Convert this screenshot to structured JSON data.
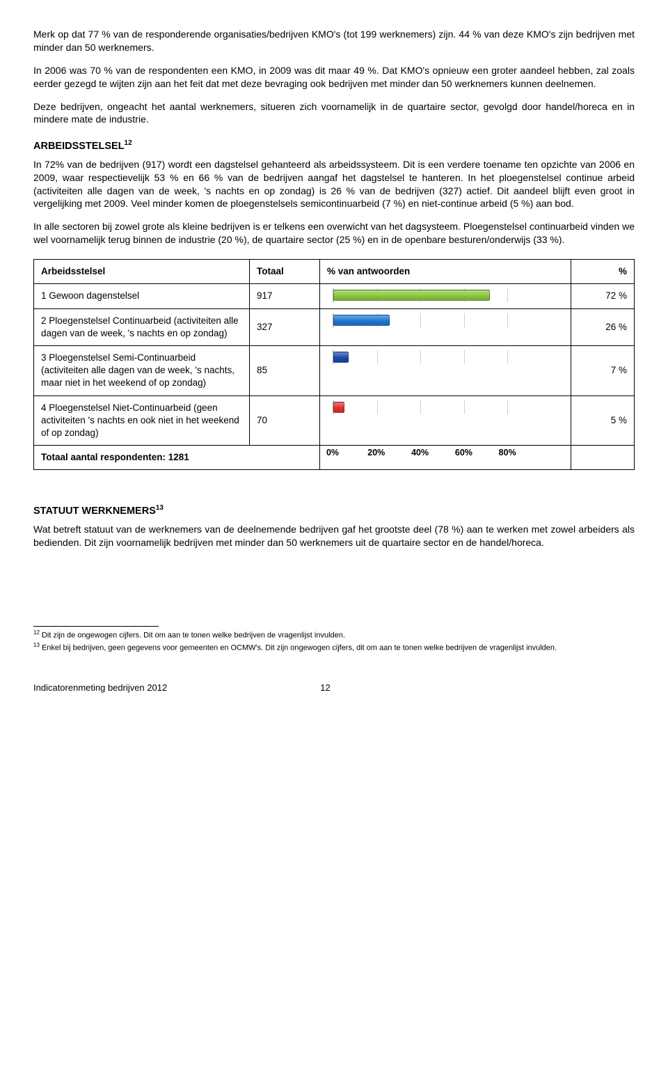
{
  "paragraphs": {
    "p1": "Merk op dat 77 % van de responderende organisaties/bedrijven KMO's (tot 199 werknemers) zijn. 44 % van deze KMO's zijn bedrijven met minder dan 50 werknemers.",
    "p2": "In 2006 was 70 % van de respondenten een KMO, in 2009 was dit maar 49 %. Dat KMO's opnieuw een groter aandeel hebben, zal zoals eerder gezegd te wijten zijn aan het feit dat met deze bevraging ook bedrijven met minder dan 50 werknemers kunnen deelnemen.",
    "p3": "Deze bedrijven, ongeacht het aantal werknemers, situeren zich voornamelijk in de quartaire sector, gevolgd door handel/horeca en in mindere mate de industrie.",
    "section1_title": "ARBEIDSSTELSEL",
    "section1_sup": "12",
    "p4": "In 72% van de bedrijven (917) wordt een dagstelsel gehanteerd als arbeidssysteem. Dit is een verdere toename ten opzichte van 2006 en 2009, waar respectievelijk 53 % en 66 % van de bedrijven aangaf het dagstelsel te hanteren. In het ploegenstelsel continue arbeid (activiteiten alle dagen van de week, 's nachts en op zondag) is 26 % van de bedrijven (327) actief. Dit aandeel blijft even groot in vergelijking met 2009. Veel minder komen de ploegenstelsels semicontinuarbeid (7 %) en niet-continue arbeid (5 %) aan bod.",
    "p5": "In alle sectoren bij zowel grote als kleine bedrijven is er telkens een overwicht van het dagsysteem. Ploegenstelsel continuarbeid vinden we wel voornamelijk terug binnen de industrie (20 %), de quartaire sector (25 %) en in de openbare besturen/onderwijs (33 %).",
    "section2_title": "STATUUT WERKNEMERS",
    "section2_sup": "13",
    "p6": "Wat betreft statuut van de werknemers van de deelnemende bedrijven gaf het grootste deel (78 %) aan te werken met zowel arbeiders als bedienden. Dit zijn voornamelijk bedrijven met minder dan 50 werknemers uit de quartaire sector en de handel/horeca."
  },
  "table": {
    "headers": {
      "col1": "Arbeidsstelsel",
      "col2": "Totaal",
      "col3": "% van antwoorden",
      "col4": "%"
    },
    "rows": [
      {
        "label": "1 Gewoon dagenstelsel",
        "totaal": "917",
        "pct_value": 72,
        "pct_text": "72 %",
        "color": "#8cc63f"
      },
      {
        "label": "2 Ploegenstelsel Continuarbeid (activiteiten alle dagen van de week, 's nachts en op zondag)",
        "totaal": "327",
        "pct_value": 26,
        "pct_text": "26 %",
        "color": "#1f77d4"
      },
      {
        "label": "3 Ploegenstelsel Semi-Continuarbeid (activiteiten alle dagen van de week, 's nachts, maar niet in het weekend of op zondag)",
        "totaal": "85",
        "pct_value": 7,
        "pct_text": "7 %",
        "color": "#1b4aa8"
      },
      {
        "label": "4 Ploegenstelsel Niet-Continuarbeid (geen activiteiten 's nachts en ook niet in het weekend of op zondag)",
        "totaal": "70",
        "pct_value": 5,
        "pct_text": "5 %",
        "color": "#e0312c"
      }
    ],
    "summary_label": "Totaal aantal respondenten: 1281",
    "axis": {
      "ticks": [
        0,
        20,
        40,
        60,
        80
      ],
      "labels": [
        "0%",
        "20%",
        "40%",
        "60%",
        "80%"
      ],
      "max": 100,
      "grid_color": "#d0d0d0"
    }
  },
  "footnotes": {
    "f12": "Dit zijn de ongewogen cijfers. Dit om aan te tonen welke bedrijven de vragenlijst invulden.",
    "f13": "Enkel bij bedrijven, geen gegevens voor gemeenten en OCMW's. Dit zijn ongewogen cijfers, dit om aan te tonen welke bedrijven de vragenlijst invulden."
  },
  "footer": {
    "left": "Indicatorenmeting bedrijven 2012",
    "page": "12"
  }
}
